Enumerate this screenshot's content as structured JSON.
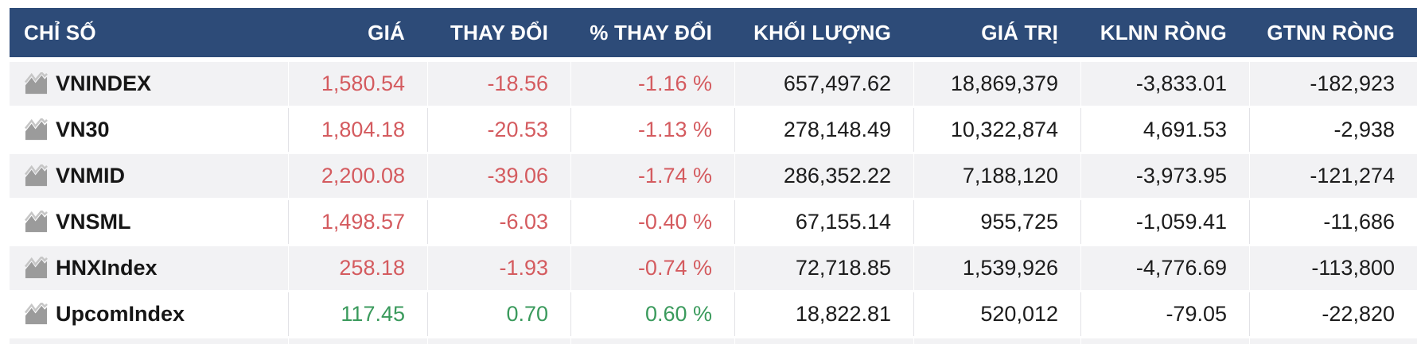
{
  "table": {
    "columns": [
      {
        "key": "index",
        "label": "CHỈ SỐ"
      },
      {
        "key": "price",
        "label": "GIÁ"
      },
      {
        "key": "change",
        "label": "THAY ĐỔI"
      },
      {
        "key": "change_pct",
        "label": "% THAY ĐỔI"
      },
      {
        "key": "volume",
        "label": "KHỐI LƯỢNG"
      },
      {
        "key": "value",
        "label": "GIÁ TRỊ"
      },
      {
        "key": "foreign_net_volume",
        "label": "KLNN RÒNG"
      },
      {
        "key": "foreign_net_value",
        "label": "GTNN RÒNG"
      }
    ],
    "rows": [
      {
        "index": "VNINDEX",
        "price": "1,580.54",
        "change": "-18.56",
        "change_pct": "-1.16 %",
        "volume": "657,497.62",
        "value": "18,869,379",
        "foreign_net_volume": "-3,833.01",
        "foreign_net_value": "-182,923",
        "trend": "down"
      },
      {
        "index": "VN30",
        "price": "1,804.18",
        "change": "-20.53",
        "change_pct": "-1.13 %",
        "volume": "278,148.49",
        "value": "10,322,874",
        "foreign_net_volume": "4,691.53",
        "foreign_net_value": "-2,938",
        "trend": "down"
      },
      {
        "index": "VNMID",
        "price": "2,200.08",
        "change": "-39.06",
        "change_pct": "-1.74 %",
        "volume": "286,352.22",
        "value": "7,188,120",
        "foreign_net_volume": "-3,973.95",
        "foreign_net_value": "-121,274",
        "trend": "down"
      },
      {
        "index": "VNSML",
        "price": "1,498.57",
        "change": "-6.03",
        "change_pct": "-0.40 %",
        "volume": "67,155.14",
        "value": "955,725",
        "foreign_net_volume": "-1,059.41",
        "foreign_net_value": "-11,686",
        "trend": "down"
      },
      {
        "index": "HNXIndex",
        "price": "258.18",
        "change": "-1.93",
        "change_pct": "-0.74 %",
        "volume": "72,718.85",
        "value": "1,539,926",
        "foreign_net_volume": "-4,776.69",
        "foreign_net_value": "-113,800",
        "trend": "down"
      },
      {
        "index": "UpcomIndex",
        "price": "117.45",
        "change": "0.70",
        "change_pct": "0.60 %",
        "volume": "18,822.81",
        "value": "520,012",
        "foreign_net_volume": "-79.05",
        "foreign_net_value": "-22,820",
        "trend": "up"
      }
    ]
  },
  "icons": {
    "row_icon": "area-chart-icon"
  },
  "colors": {
    "header_bg": "#2d4b78",
    "header_text": "#ffffff",
    "down": "#d45b5f",
    "up": "#3a9a5c",
    "neutral_text": "#1c1c1c",
    "row_alt_bg": "#f2f2f4",
    "separator": "#e2e2e6",
    "icon": "#9b9b9b"
  }
}
